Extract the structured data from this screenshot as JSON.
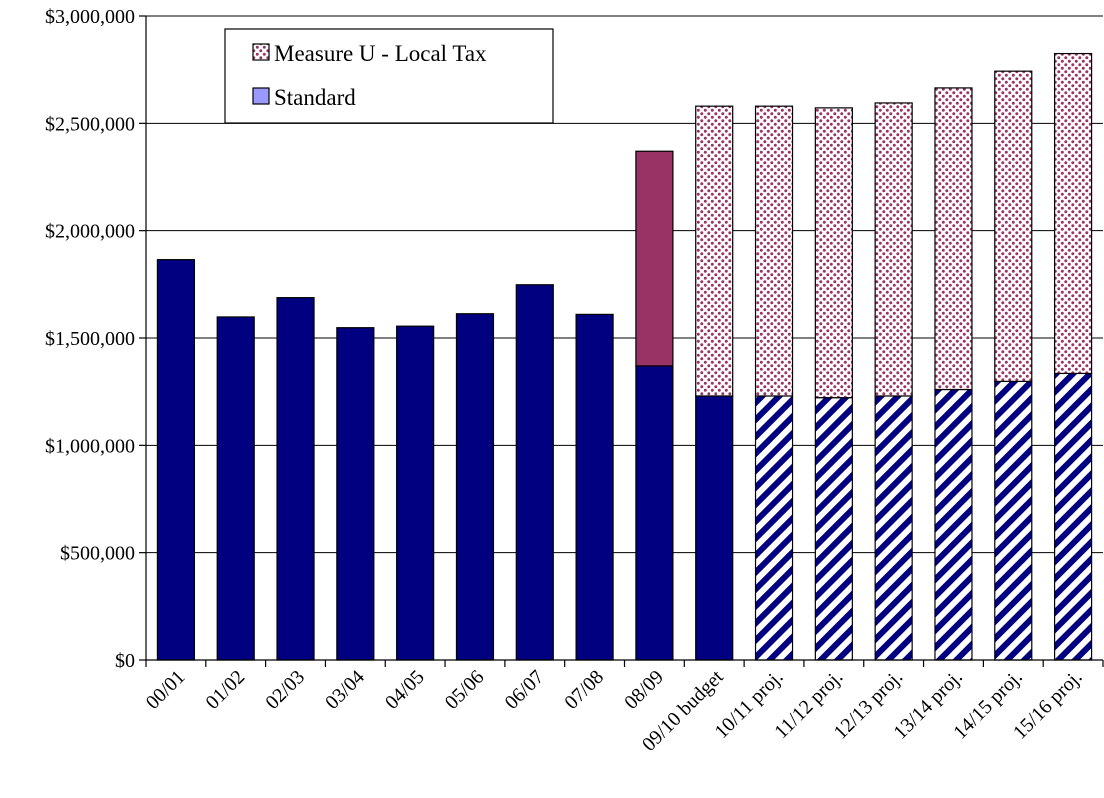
{
  "chart_data": {
    "type": "bar",
    "stacked": true,
    "categories": [
      "00/01",
      "01/02",
      "02/03",
      "03/04",
      "04/05",
      "05/06",
      "06/07",
      "07/08",
      "08/09",
      "09/10 budget",
      "10/11 proj.",
      "11/12 proj.",
      "12/13 proj.",
      "13/14 proj.",
      "14/15 proj.",
      "15/16 proj."
    ],
    "series": [
      {
        "name": "Standard",
        "values": [
          1865000,
          1598000,
          1688000,
          1548000,
          1555000,
          1613000,
          1748000,
          1610000,
          1370000,
          1230000,
          1230000,
          1222000,
          1230000,
          1260000,
          1298000,
          1335000
        ]
      },
      {
        "name": "Measure U - Local Tax",
        "values": [
          0,
          0,
          0,
          0,
          0,
          0,
          0,
          0,
          1000000,
          1350000,
          1350000,
          1350000,
          1365000,
          1405000,
          1445000,
          1490000
        ]
      }
    ],
    "ylim": [
      0,
      3000000
    ],
    "yticks": [
      "$0",
      "$500,000",
      "$1,000,000",
      "$1,500,000",
      "$2,000,000",
      "$2,500,000",
      "$3,000,000"
    ],
    "grid": true,
    "legend_position": "top-left",
    "colors": {
      "standard_solid": "#000080",
      "standard_hatch": "#000080",
      "measure_solid": "#993366",
      "measure_dots": "#993366",
      "legend_standard": "#9999ff"
    },
    "fill_styles": [
      "solid",
      "solid",
      "solid",
      "solid",
      "solid",
      "solid",
      "solid",
      "solid",
      "solid",
      "solid",
      "projected",
      "projected",
      "projected",
      "projected",
      "projected",
      "projected"
    ],
    "measure_styles": [
      "none",
      "none",
      "none",
      "none",
      "none",
      "none",
      "none",
      "none",
      "solid",
      "dotted",
      "dotted",
      "dotted",
      "dotted",
      "dotted",
      "dotted",
      "dotted"
    ]
  }
}
